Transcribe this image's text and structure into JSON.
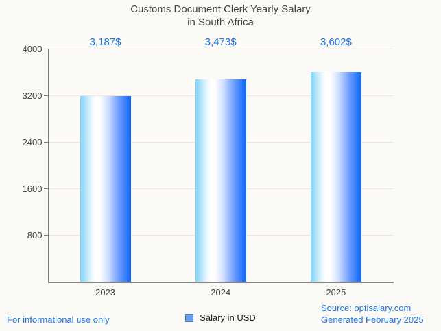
{
  "title": {
    "line1": "Customs Document Clerk Yearly Salary",
    "line2": "in South Africa",
    "color": "#424242"
  },
  "chart_data": {
    "type": "bar",
    "title": "Customs Document Clerk Yearly Salary in South Africa",
    "categories": [
      "2023",
      "2024",
      "2025"
    ],
    "values": [
      3187,
      3473,
      3602
    ],
    "value_labels": [
      "3,187$",
      "3,473$",
      "3,602$"
    ],
    "series": [
      {
        "name": "Salary in USD",
        "values": [
          3187,
          3473,
          3602
        ]
      }
    ],
    "xlabel": "",
    "ylabel": "",
    "ylim": [
      0,
      4000
    ],
    "yticks": [
      800,
      1600,
      2400,
      3200,
      4000
    ],
    "grid": "horizontal",
    "legend_position": "bottom",
    "annotation_color": "#1a73e8",
    "bar_gradient": [
      "#7ed3f9",
      "#ffffff",
      "#0d66fb"
    ],
    "background_color": "#fbfaf6"
  },
  "legend": {
    "label": "Salary in USD",
    "swatch_fill": "#6d9eeb",
    "swatch_border": "#4477cc"
  },
  "footer": {
    "left_note": "For informational use only",
    "source_line1": "Source: optisalary.com",
    "source_line2": "Generated February 2025",
    "color": "#1a73e8"
  }
}
